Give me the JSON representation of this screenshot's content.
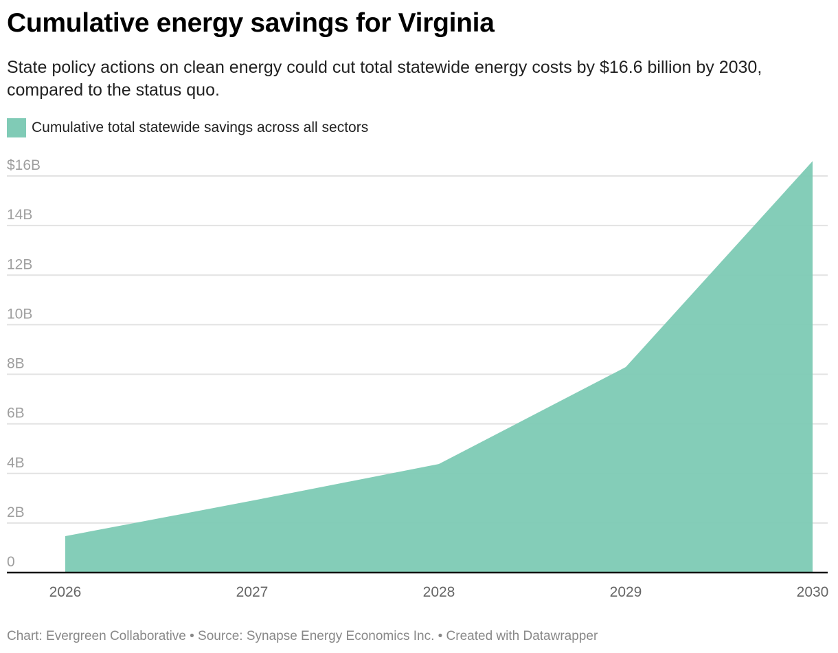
{
  "chart_data": {
    "type": "area",
    "title": "Cumulative energy savings for Virginia",
    "subtitle": "State policy actions on clean energy could cut total statewide energy costs by $16.6 billion by 2030, compared to the status quo.",
    "legend": {
      "position": "top-left",
      "entries": [
        "Cumulative total statewide savings across all sectors"
      ]
    },
    "categories": [
      "2026",
      "2027",
      "2028",
      "2029",
      "2030"
    ],
    "series": [
      {
        "name": "Cumulative total statewide savings across all sectors",
        "values": [
          1.47,
          2.9,
          4.38,
          8.29,
          16.6
        ],
        "color": "#80cbb6"
      }
    ],
    "y_unit": "billion USD",
    "ylim": [
      0,
      16.6
    ],
    "y_ticks": [
      {
        "value": 0,
        "label": "0"
      },
      {
        "value": 2,
        "label": "2B"
      },
      {
        "value": 4,
        "label": "4B"
      },
      {
        "value": 6,
        "label": "6B"
      },
      {
        "value": 8,
        "label": "8B"
      },
      {
        "value": 10,
        "label": "10B"
      },
      {
        "value": 12,
        "label": "12B"
      },
      {
        "value": 14,
        "label": "14B"
      },
      {
        "value": 16,
        "label": "$16B"
      }
    ],
    "grid": true,
    "footer": "Chart: Evergreen Collaborative • Source: Synapse Energy Economics Inc. • Created with Datawrapper"
  }
}
